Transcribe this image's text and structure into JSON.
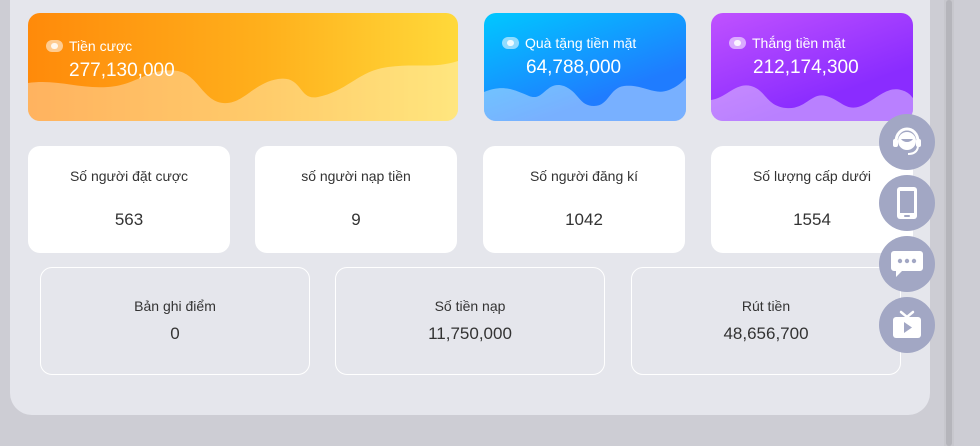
{
  "top_cards": {
    "bet": {
      "label": "Tiền cược",
      "value": "277,130,000",
      "icon": "coin-icon"
    },
    "gift": {
      "label": "Quà tặng tiền mặt",
      "value": "64,788,000",
      "icon": "gift-icon"
    },
    "win": {
      "label": "Thắng tiền mặt",
      "value": "212,174,300",
      "icon": "trophy-icon"
    }
  },
  "stats": [
    {
      "label": "Số người đặt cược",
      "value": "563"
    },
    {
      "label": "số người nạp tiền",
      "value": "9"
    },
    {
      "label": "Số người đăng kí",
      "value": "1042"
    },
    {
      "label": "Số lượng cấp dưới",
      "value": "1554"
    }
  ],
  "boxes": [
    {
      "label": "Bản ghi điểm",
      "value": "0"
    },
    {
      "label": "Số tiền nạp",
      "value": "11,750,000"
    },
    {
      "label": "Rút tiền",
      "value": "48,656,700"
    }
  ],
  "float_buttons": [
    "customer-service-icon",
    "mobile-icon",
    "chat-icon",
    "video-icon"
  ],
  "colors": {
    "bet_card": "#ff8a0a",
    "gift_card": "#1f7cff",
    "win_card": "#8a2cff",
    "float_button": "#a2a7c4"
  }
}
